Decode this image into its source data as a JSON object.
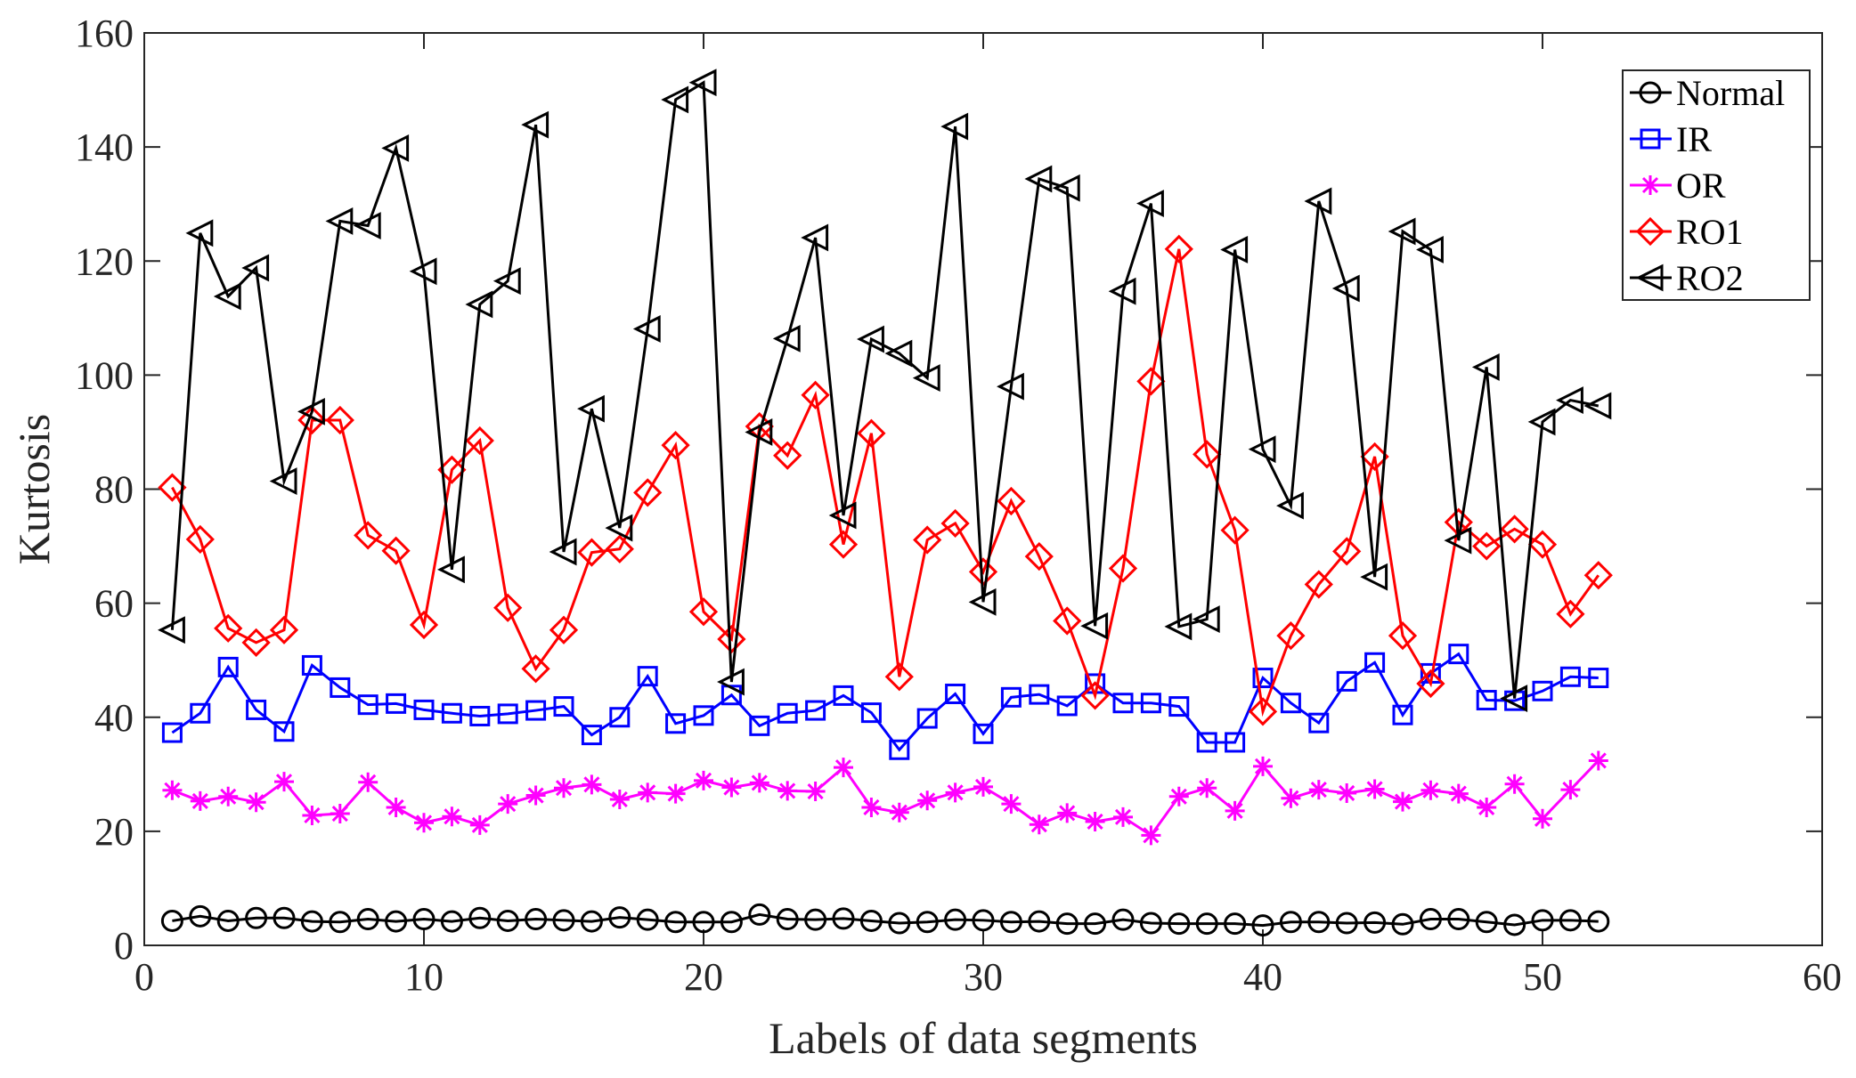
{
  "chart_data": {
    "type": "line",
    "xlabel": "Labels of data segments",
    "ylabel": "Kurtosis",
    "xlim": [
      0,
      60
    ],
    "ylim": [
      0,
      160
    ],
    "xticks": [
      0,
      10,
      20,
      30,
      40,
      50,
      60
    ],
    "yticks": [
      0,
      20,
      40,
      60,
      80,
      100,
      120,
      140,
      160
    ],
    "grid": false,
    "legend_position": "top-right",
    "x": [
      1,
      2,
      3,
      4,
      5,
      6,
      7,
      8,
      9,
      10,
      11,
      12,
      13,
      14,
      15,
      16,
      17,
      18,
      19,
      20,
      21,
      22,
      23,
      24,
      25,
      26,
      27,
      28,
      29,
      30,
      31,
      32,
      33,
      34,
      35,
      36,
      37,
      38,
      39,
      40,
      41,
      42,
      43,
      44,
      45,
      46,
      47,
      48,
      49,
      50,
      51,
      52
    ],
    "series": [
      {
        "name": "Normal",
        "color": "#000000",
        "marker": "circle",
        "values": [
          4.3,
          5.1,
          4.3,
          4.8,
          4.8,
          4.2,
          4.1,
          4.6,
          4.2,
          4.6,
          4.2,
          4.8,
          4.3,
          4.6,
          4.4,
          4.2,
          4.9,
          4.5,
          4.1,
          4.1,
          4.1,
          5.4,
          4.6,
          4.5,
          4.7,
          4.3,
          3.9,
          4.1,
          4.5,
          4.4,
          4.1,
          4.2,
          3.8,
          3.8,
          4.5,
          3.9,
          3.8,
          3.8,
          3.8,
          3.5,
          4.1,
          4.1,
          3.9,
          4.0,
          3.7,
          4.6,
          4.6,
          4.1,
          3.6,
          4.4,
          4.4,
          4.2
        ]
      },
      {
        "name": "IR",
        "color": "#0000ff",
        "marker": "square",
        "values": [
          37.3,
          40.7,
          48.8,
          41.3,
          37.5,
          49.1,
          45.2,
          42.2,
          42.4,
          41.3,
          40.7,
          40.2,
          40.6,
          41.2,
          41.9,
          36.9,
          40.0,
          47.2,
          38.9,
          40.3,
          43.9,
          38.5,
          40.7,
          41.2,
          43.8,
          40.8,
          34.3,
          39.8,
          44.1,
          37.1,
          43.5,
          44.0,
          42.0,
          45.9,
          42.5,
          42.5,
          41.9,
          35.6,
          35.6,
          46.9,
          42.5,
          39.0,
          46.3,
          49.6,
          40.4,
          47.7,
          51.1,
          43.0,
          42.9,
          44.6,
          47.1,
          46.9
        ]
      },
      {
        "name": "OR",
        "color": "#ff00ff",
        "marker": "star",
        "values": [
          27.2,
          25.3,
          26.1,
          25.1,
          28.7,
          22.8,
          23.1,
          28.6,
          24.2,
          21.5,
          22.6,
          21.1,
          24.8,
          26.3,
          27.6,
          28.2,
          25.6,
          26.8,
          26.6,
          28.9,
          27.7,
          28.5,
          27.1,
          27.0,
          31.2,
          24.2,
          23.3,
          25.4,
          26.8,
          27.8,
          24.8,
          21.2,
          23.2,
          21.7,
          22.5,
          19.3,
          26.1,
          27.6,
          23.6,
          31.4,
          25.8,
          27.3,
          26.7,
          27.4,
          25.2,
          27.2,
          26.6,
          24.2,
          28.3,
          22.2,
          27.3,
          32.4
        ]
      },
      {
        "name": "RO1",
        "color": "#ff0000",
        "marker": "diamond",
        "values": [
          80.3,
          71.2,
          55.6,
          53.1,
          55.3,
          92.1,
          92.1,
          71.9,
          69.2,
          56.2,
          83.4,
          88.5,
          59.2,
          48.5,
          55.3,
          68.9,
          69.5,
          79.4,
          87.7,
          58.5,
          53.7,
          91.0,
          85.9,
          96.5,
          70.3,
          89.8,
          47.1,
          71.1,
          74.0,
          65.5,
          77.9,
          68.2,
          56.9,
          43.8,
          66.1,
          98.9,
          122.1,
          86.1,
          72.8,
          41.0,
          54.3,
          63.3,
          69.1,
          85.7,
          54.3,
          45.9,
          74.2,
          70.0,
          73.0,
          70.3,
          58.1,
          64.9
        ]
      },
      {
        "name": "RO2",
        "color": "#000000",
        "marker": "triangle-left",
        "values": [
          55.3,
          124.9,
          113.8,
          118.8,
          81.4,
          93.6,
          127.0,
          126.2,
          139.8,
          118.2,
          65.9,
          112.4,
          116.5,
          143.9,
          69.0,
          94.1,
          73.2,
          108.1,
          148.3,
          151.3,
          46.2,
          90.0,
          106.4,
          124.1,
          75.4,
          106.3,
          103.8,
          99.5,
          143.6,
          60.2,
          98.0,
          134.4,
          132.8,
          56.0,
          114.7,
          130.1,
          55.9,
          57.2,
          122.0,
          87.0,
          77.1,
          130.5,
          115.2,
          64.6,
          125.2,
          122.0,
          71.0,
          101.4,
          43.3,
          91.8,
          95.6,
          94.6
        ]
      }
    ]
  }
}
